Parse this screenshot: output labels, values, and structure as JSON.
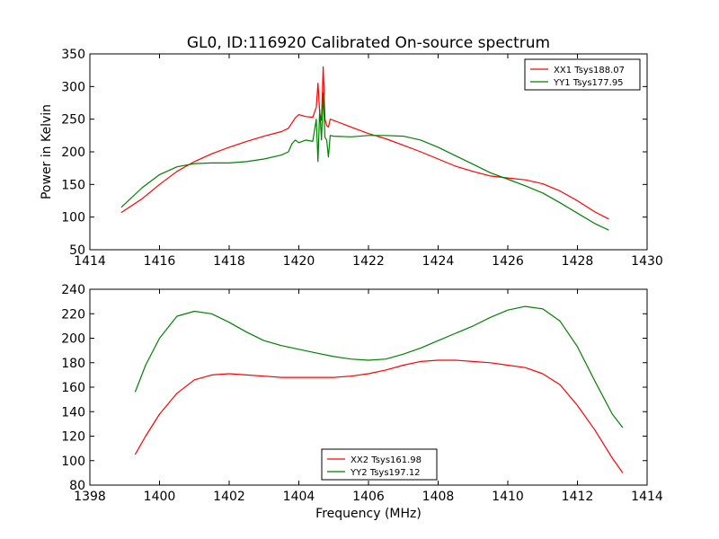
{
  "title": "GL0, ID:116920 Calibrated On-source spectrum",
  "chart_data": [
    {
      "type": "line",
      "ylabel": "Power in Kelvin",
      "xlabel": "",
      "xlim": [
        1414,
        1430
      ],
      "ylim": [
        50,
        350
      ],
      "xticks": [
        1414,
        1416,
        1418,
        1420,
        1422,
        1424,
        1426,
        1428,
        1430
      ],
      "yticks": [
        50,
        100,
        150,
        200,
        250,
        300,
        350
      ],
      "grid": false,
      "legend": "top-right",
      "series": [
        {
          "name": "XX1 Tsys188.07",
          "color": "#ff0000",
          "x": [
            1414.9,
            1415.5,
            1416.0,
            1416.5,
            1417.0,
            1417.5,
            1418.0,
            1418.5,
            1419.0,
            1419.5,
            1419.7,
            1419.9,
            1420.0,
            1420.2,
            1420.4,
            1420.5,
            1420.55,
            1420.6,
            1420.65,
            1420.7,
            1420.75,
            1420.8,
            1420.85,
            1420.9,
            1421.0,
            1421.2,
            1421.5,
            1422.0,
            1422.5,
            1423.0,
            1423.5,
            1424.0,
            1424.5,
            1425.0,
            1425.5,
            1426.0,
            1426.5,
            1427.0,
            1427.5,
            1428.0,
            1428.5,
            1428.9
          ],
          "y": [
            107,
            128,
            150,
            170,
            185,
            197,
            207,
            216,
            224,
            231,
            236,
            252,
            257,
            254,
            253,
            268,
            305,
            260,
            248,
            330,
            250,
            240,
            238,
            250,
            248,
            244,
            238,
            228,
            220,
            210,
            200,
            189,
            178,
            170,
            163,
            160,
            157,
            151,
            140,
            125,
            108,
            97
          ]
        },
        {
          "name": "YY1 Tsys177.95",
          "color": "#008000",
          "x": [
            1414.9,
            1415.5,
            1416.0,
            1416.5,
            1417.0,
            1417.5,
            1418.0,
            1418.5,
            1419.0,
            1419.5,
            1419.7,
            1419.8,
            1419.9,
            1420.0,
            1420.2,
            1420.4,
            1420.5,
            1420.55,
            1420.6,
            1420.65,
            1420.7,
            1420.75,
            1420.8,
            1420.85,
            1420.9,
            1421.0,
            1421.5,
            1422.0,
            1422.5,
            1423.0,
            1423.5,
            1424.0,
            1424.5,
            1425.0,
            1425.5,
            1426.0,
            1426.5,
            1427.0,
            1427.5,
            1428.0,
            1428.5,
            1428.9
          ],
          "y": [
            115,
            145,
            165,
            177,
            182,
            183,
            183,
            185,
            189,
            195,
            200,
            212,
            218,
            214,
            218,
            216,
            250,
            185,
            265,
            218,
            290,
            222,
            218,
            192,
            225,
            224,
            223,
            225,
            225,
            224,
            218,
            207,
            194,
            181,
            168,
            158,
            148,
            137,
            122,
            106,
            90,
            80
          ]
        }
      ]
    },
    {
      "type": "line",
      "ylabel": "",
      "xlabel": "Frequency (MHz)",
      "xlim": [
        1398,
        1414
      ],
      "ylim": [
        80,
        240
      ],
      "xticks": [
        1398,
        1400,
        1402,
        1404,
        1406,
        1408,
        1410,
        1412,
        1414
      ],
      "yticks": [
        80,
        100,
        120,
        140,
        160,
        180,
        200,
        220,
        240
      ],
      "grid": false,
      "legend": "bottom-center",
      "series": [
        {
          "name": "XX2 Tsys161.98",
          "color": "#ff0000",
          "x": [
            1399.3,
            1399.6,
            1400.0,
            1400.5,
            1401.0,
            1401.5,
            1402.0,
            1402.5,
            1403.0,
            1403.5,
            1404.0,
            1404.5,
            1405.0,
            1405.5,
            1406.0,
            1406.5,
            1407.0,
            1407.5,
            1408.0,
            1408.5,
            1409.0,
            1409.5,
            1410.0,
            1410.5,
            1411.0,
            1411.5,
            1412.0,
            1412.5,
            1413.0,
            1413.3
          ],
          "y": [
            105,
            120,
            138,
            155,
            166,
            170,
            171,
            170,
            169,
            168,
            168,
            168,
            168,
            169,
            171,
            174,
            178,
            181,
            182,
            182,
            181,
            180,
            178,
            176,
            171,
            162,
            145,
            125,
            102,
            90
          ]
        },
        {
          "name": "YY2 Tsys197.12",
          "color": "#008000",
          "x": [
            1399.3,
            1399.6,
            1400.0,
            1400.5,
            1401.0,
            1401.5,
            1402.0,
            1402.5,
            1403.0,
            1403.5,
            1404.0,
            1404.5,
            1405.0,
            1405.5,
            1406.0,
            1406.5,
            1407.0,
            1407.5,
            1408.0,
            1408.5,
            1409.0,
            1409.5,
            1410.0,
            1410.5,
            1411.0,
            1411.5,
            1412.0,
            1412.5,
            1413.0,
            1413.3
          ],
          "y": [
            156,
            178,
            200,
            218,
            222,
            220,
            213,
            205,
            198,
            194,
            191,
            188,
            185,
            183,
            182,
            183,
            187,
            192,
            198,
            204,
            210,
            217,
            223,
            226,
            224,
            214,
            193,
            165,
            138,
            127
          ]
        }
      ]
    }
  ]
}
